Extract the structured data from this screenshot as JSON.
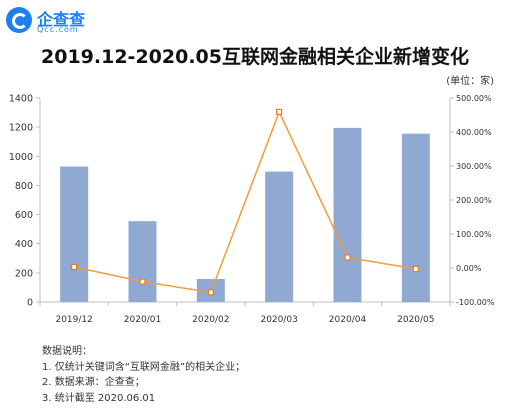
{
  "header": {
    "logo_name": "企查查",
    "logo_domain": "Qcc.com",
    "title": "2019.12-2020.05互联网金融相关企业新增变化",
    "unit": "(单位：家)"
  },
  "chart_data": {
    "type": "bar",
    "categories": [
      "2019/12",
      "2020/01",
      "2020/02",
      "2020/03",
      "2020/04",
      "2020/05"
    ],
    "series": [
      {
        "values": [
          930,
          555,
          158,
          895,
          1195,
          1155
        ],
        "axis": "left",
        "type": "bar",
        "color": "#90a9d3"
      },
      {
        "values": [
          3.0,
          -40.0,
          -71.5,
          459.0,
          31.0,
          -3.0
        ],
        "axis": "right",
        "type": "line",
        "color": "#f49b3c",
        "unit": "%"
      }
    ],
    "ylim_left": [
      0,
      1400
    ],
    "ylim_right": [
      -100,
      500
    ],
    "yticks_left": [
      "0",
      "200",
      "400",
      "600",
      "800",
      "1000",
      "1200",
      "1400"
    ],
    "yticks_right": [
      "-100.00%",
      "0.00%",
      "100.00%",
      "200.00%",
      "300.00%",
      "400.00%",
      "500.00%"
    ],
    "grid": false,
    "legend": "none"
  },
  "notes": {
    "heading": "数据说明：",
    "items": [
      "1. 仅统计关键词含“互联网金融”的相关企业；",
      "2. 数据来源：企查查；",
      "3. 统计截至 2020.06.01"
    ]
  }
}
